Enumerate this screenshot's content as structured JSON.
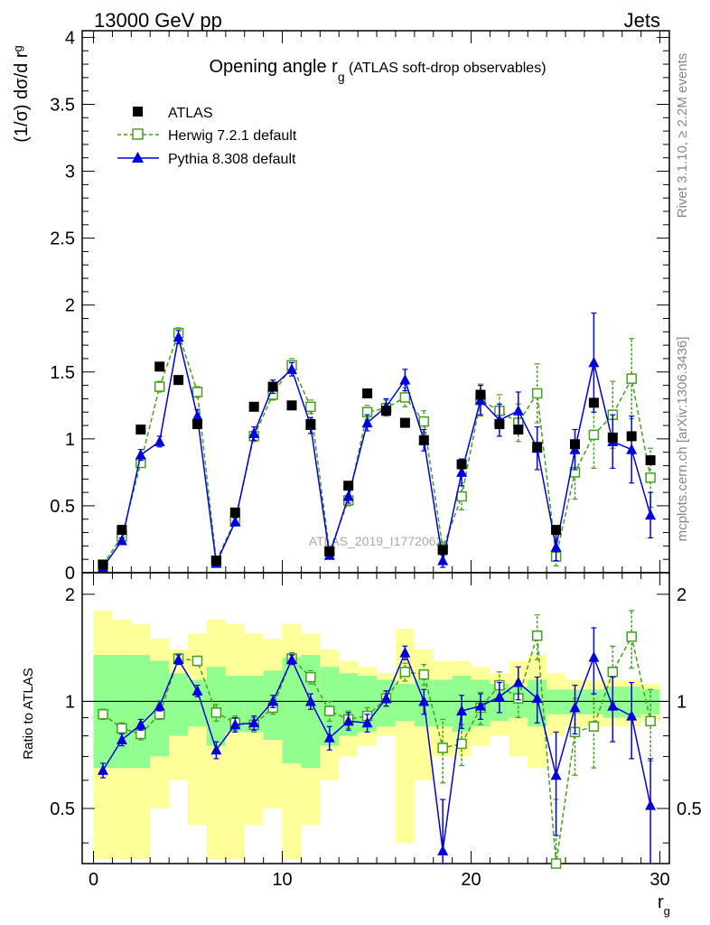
{
  "header": {
    "left": "13000 GeV pp",
    "right": "Jets"
  },
  "side_labels": {
    "rivet": "Rivet 3.1.10, ≥ 2.2M events",
    "mcplots": "mcplots.cern.ch [arXiv:1306.3436]"
  },
  "watermark": "ATLAS_2019_I1772062",
  "colors": {
    "atlas": "#000000",
    "herwig": "#44a01b",
    "pythia": "#0000dd",
    "band_outer": "#ffff99",
    "band_inner": "#90ff90"
  },
  "chart_data": [
    {
      "type": "scatter",
      "panel": "main",
      "title_main": "Opening angle r",
      "title_sub": "g",
      "title_rest": " (ATLAS soft-drop observables)",
      "ylabel": "(1/σ) dσ/d r",
      "ylabel_sub": "g",
      "xlim": [
        -0.6,
        30.5
      ],
      "ylim": [
        0,
        4.05
      ],
      "yticks": [
        "0",
        "0.5",
        "1",
        "1.5",
        "2",
        "2.5",
        "3",
        "3.5",
        "4"
      ],
      "legend_position": "top-left",
      "x": [
        0.5,
        1.5,
        2.5,
        3.5,
        4.5,
        5.5,
        6.5,
        7.5,
        8.5,
        9.5,
        10.5,
        11.5,
        12.5,
        13.5,
        14.5,
        15.5,
        16.5,
        17.5,
        18.5,
        19.5,
        20.5,
        21.5,
        22.5,
        23.5,
        24.5,
        25.5,
        26.5,
        27.5,
        28.5,
        29.5
      ],
      "series": [
        {
          "name": "ATLAS",
          "marker": "square",
          "y": [
            0.06,
            0.32,
            1.07,
            1.54,
            1.44,
            1.11,
            0.09,
            0.45,
            1.24,
            1.39,
            1.25,
            1.11,
            0.16,
            0.65,
            1.34,
            1.21,
            1.12,
            0.99,
            0.17,
            0.81,
            1.33,
            1.11,
            1.07,
            0.94,
            0.32,
            0.96,
            1.27,
            1.01,
            1.02,
            0.84
          ]
        },
        {
          "name": "Herwig 7.2.1 default",
          "marker": "open-square",
          "y": [
            0.06,
            0.27,
            0.82,
            1.39,
            1.79,
            1.35,
            0.09,
            0.39,
            1.02,
            1.33,
            1.55,
            1.24,
            0.16,
            0.54,
            1.2,
            1.23,
            1.31,
            1.13,
            0.18,
            0.57,
            1.29,
            1.21,
            1.12,
            1.34,
            0.12,
            0.75,
            1.03,
            1.18,
            1.45,
            0.71
          ],
          "yerr": [
            0.01,
            0.02,
            0.03,
            0.04,
            0.04,
            0.04,
            0.01,
            0.03,
            0.04,
            0.04,
            0.05,
            0.05,
            0.02,
            0.04,
            0.05,
            0.06,
            0.07,
            0.08,
            0.05,
            0.1,
            0.12,
            0.12,
            0.14,
            0.22,
            0.07,
            0.2,
            0.25,
            0.25,
            0.3,
            0.22
          ]
        },
        {
          "name": "Pythia 8.308 default",
          "marker": "triangle",
          "y": [
            0.04,
            0.24,
            0.88,
            0.98,
            1.76,
            1.17,
            0.07,
            0.38,
            1.04,
            1.39,
            1.52,
            1.1,
            0.13,
            0.57,
            1.12,
            1.24,
            1.44,
            0.99,
            0.09,
            0.75,
            1.29,
            1.14,
            1.21,
            0.93,
            0.19,
            0.92,
            1.57,
            0.98,
            0.92,
            0.43
          ],
          "yerr": [
            0.01,
            0.02,
            0.04,
            0.04,
            0.05,
            0.05,
            0.01,
            0.03,
            0.05,
            0.05,
            0.05,
            0.06,
            0.02,
            0.05,
            0.06,
            0.06,
            0.08,
            0.08,
            0.05,
            0.1,
            0.11,
            0.12,
            0.14,
            0.16,
            0.1,
            0.15,
            0.37,
            0.2,
            0.25,
            0.17
          ]
        }
      ]
    },
    {
      "type": "scatter",
      "panel": "ratio",
      "ylabel": "Ratio to ATLAS",
      "xlabel": "r",
      "xlabel_sub": "g",
      "xlim": [
        -0.6,
        30.5
      ],
      "ylim": [
        0.35,
        2.3
      ],
      "yticks": [
        "0.5",
        "1",
        "2"
      ],
      "xticks": [
        "0",
        "10",
        "20",
        "30"
      ],
      "band_inner_halfwidth": [
        0.35,
        0.35,
        0.35,
        0.3,
        0.2,
        0.15,
        0.25,
        0.18,
        0.18,
        0.22,
        0.33,
        0.35,
        0.25,
        0.2,
        0.18,
        0.15,
        0.12,
        0.15,
        0.15,
        0.18,
        0.15,
        0.12,
        0.1,
        0.15,
        0.08,
        0.08,
        0.08,
        0.1,
        0.1,
        0.08
      ],
      "band_outer_halfwidth": [
        0.8,
        0.7,
        0.65,
        0.5,
        0.4,
        0.55,
        0.7,
        0.65,
        0.55,
        0.5,
        0.65,
        0.55,
        0.4,
        0.3,
        0.25,
        0.2,
        0.6,
        0.4,
        0.3,
        0.3,
        0.25,
        0.2,
        0.3,
        0.35,
        0.2,
        0.15,
        0.15,
        0.15,
        0.15,
        0.12
      ],
      "series": [
        {
          "name": "Herwig 7.2.1 default",
          "y": [
            0.92,
            0.84,
            0.81,
            0.92,
            1.32,
            1.3,
            0.93,
            0.87,
            0.86,
            0.96,
            1.32,
            1.17,
            0.94,
            0.89,
            0.91,
            1.02,
            1.21,
            1.19,
            0.74,
            0.76,
            0.96,
            1.11,
            1.02,
            1.53,
            0.33,
            0.82,
            0.85,
            1.21,
            1.52,
            0.88
          ],
          "yerr": [
            0.03,
            0.03,
            0.03,
            0.03,
            0.04,
            0.04,
            0.05,
            0.04,
            0.04,
            0.04,
            0.05,
            0.05,
            0.06,
            0.05,
            0.05,
            0.05,
            0.07,
            0.08,
            0.15,
            0.1,
            0.1,
            0.1,
            0.12,
            0.22,
            0.2,
            0.2,
            0.2,
            0.22,
            0.28,
            0.2
          ]
        },
        {
          "name": "Pythia 8.308 default",
          "y": [
            0.64,
            0.78,
            0.86,
            0.97,
            1.31,
            1.07,
            0.73,
            0.86,
            0.87,
            1.0,
            1.31,
            1.0,
            0.79,
            0.88,
            0.87,
            1.02,
            1.37,
            1.0,
            0.38,
            0.94,
            0.97,
            1.03,
            1.13,
            1.02,
            0.62,
            0.96,
            1.33,
            0.97,
            0.91,
            0.51
          ],
          "yerr": [
            0.03,
            0.03,
            0.03,
            0.03,
            0.04,
            0.04,
            0.04,
            0.04,
            0.04,
            0.04,
            0.04,
            0.05,
            0.06,
            0.05,
            0.05,
            0.05,
            0.06,
            0.08,
            0.15,
            0.1,
            0.08,
            0.1,
            0.12,
            0.15,
            0.2,
            0.15,
            0.28,
            0.2,
            0.22,
            0.18
          ]
        }
      ]
    }
  ]
}
